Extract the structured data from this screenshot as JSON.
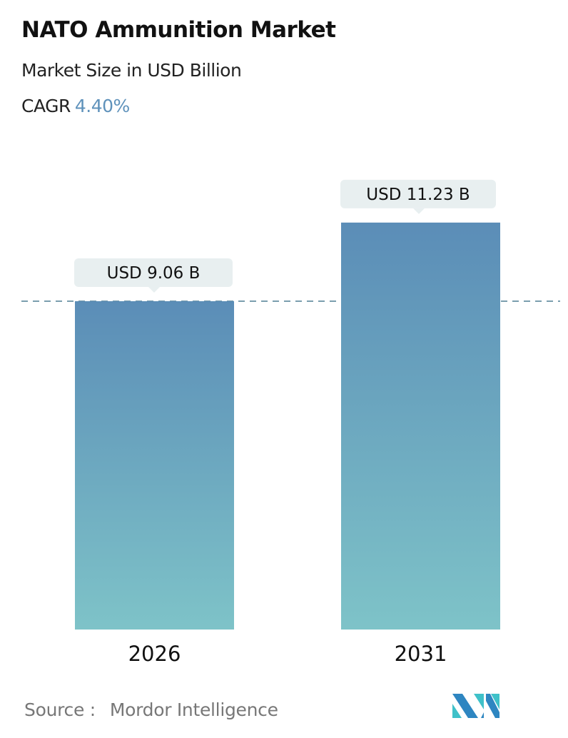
{
  "chart_data": {
    "type": "bar",
    "title": "NATO Ammunition Market",
    "subtitle": "Market Size in USD Billion",
    "cagr_label": "CAGR",
    "cagr_value": "4.40%",
    "categories": [
      "2026",
      "2031"
    ],
    "values": [
      9.06,
      11.23
    ],
    "data_labels": [
      "USD 9.06 B",
      "USD 11.23 B"
    ],
    "reference_line": {
      "value": 9.06,
      "style": "dashed"
    },
    "grid": false,
    "colors": {
      "bar_top": "#5b8db7",
      "bar_bottom": "#7ec3c8",
      "label_box": "#e8eff0",
      "accent": "#5f92bb",
      "ref_line": "#4f7f93"
    }
  },
  "source": {
    "label": "Source :",
    "name": "Mordor Intelligence"
  },
  "logo": {
    "colors": [
      "#2e86c1",
      "#3fc1c9"
    ]
  }
}
